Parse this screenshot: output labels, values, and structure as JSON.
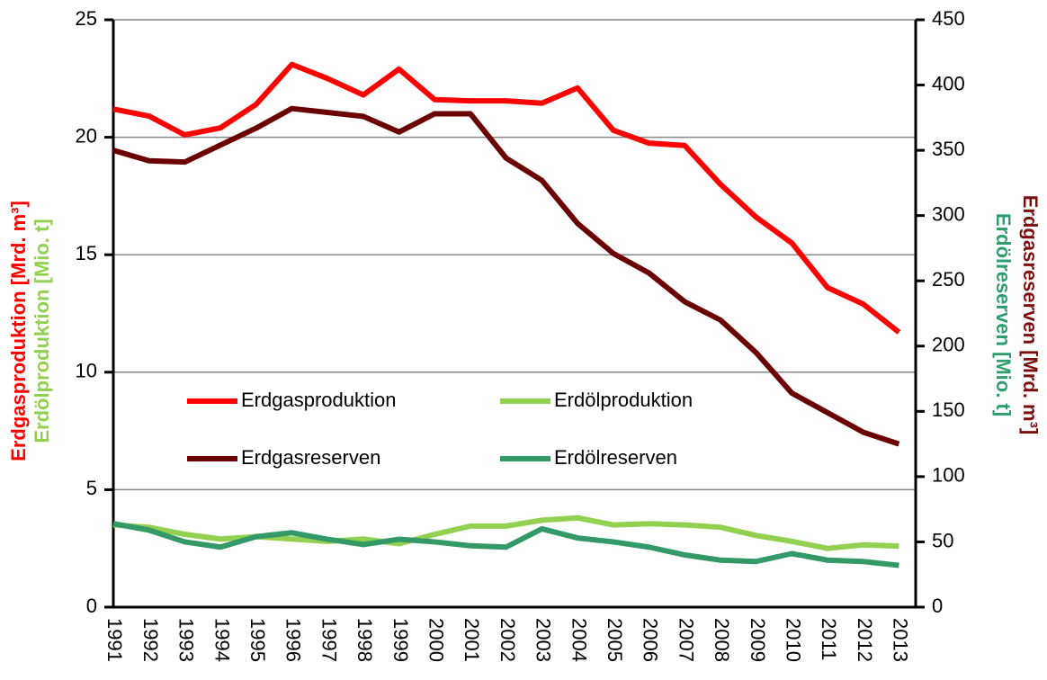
{
  "chart_data": {
    "type": "line",
    "categories": [
      "1991",
      "1992",
      "1993",
      "1994",
      "1995",
      "1996",
      "1997",
      "1998",
      "1999",
      "2000",
      "2001",
      "2002",
      "2003",
      "2004",
      "2005",
      "2006",
      "2007",
      "2008",
      "2009",
      "2010",
      "2011",
      "2012",
      "2013"
    ],
    "series": [
      {
        "name": "Erdgasproduktion",
        "color": "#ff0000",
        "axis": "y",
        "values": [
          21.2,
          20.9,
          20.1,
          20.4,
          21.4,
          23.1,
          22.5,
          21.8,
          22.9,
          21.6,
          21.55,
          21.55,
          21.45,
          22.1,
          20.3,
          19.75,
          19.65,
          18.0,
          16.6,
          15.5,
          13.6,
          12.9,
          11.7
        ]
      },
      {
        "name": "Erdölproduktion",
        "color": "#92d050",
        "axis": "y",
        "values": [
          3.5,
          3.4,
          3.1,
          2.9,
          3.0,
          2.9,
          2.8,
          2.9,
          2.7,
          3.1,
          3.45,
          3.45,
          3.7,
          3.8,
          3.5,
          3.55,
          3.5,
          3.4,
          3.05,
          2.8,
          2.5,
          2.65,
          2.6
        ]
      },
      {
        "name": "Erdgasreserven",
        "color": "#6b0000",
        "axis": "y2",
        "values": [
          350,
          342,
          341,
          354,
          367,
          382,
          379,
          376,
          364,
          378,
          378,
          344,
          327,
          294,
          271,
          256,
          234,
          220,
          195,
          164,
          149,
          134,
          125
        ]
      },
      {
        "name": "Erdölreserven",
        "color": "#339966",
        "axis": "y2",
        "values": [
          64,
          59,
          50,
          46,
          54,
          57,
          52,
          48,
          52,
          50,
          47,
          46,
          60,
          53,
          50,
          46,
          40,
          36,
          35,
          41,
          36,
          35,
          32
        ]
      }
    ],
    "ylabels": [
      {
        "text": "Erdgasproduktion [Mrd. m³]",
        "color": "#ff0000"
      },
      {
        "text": "Erdölproduktion [Mio. t]",
        "color": "#92d050"
      }
    ],
    "y2labels": [
      {
        "text": "Erdgasreserven [Mrd. m³]",
        "color": "#7b1010"
      },
      {
        "text": "Erdölreserven [Mio. t]",
        "color": "#2e9e6e"
      }
    ],
    "ylim": [
      0,
      25
    ],
    "yticks": [
      0,
      5,
      10,
      15,
      20,
      25
    ],
    "y2lim": [
      0,
      450
    ],
    "y2ticks": [
      0,
      50,
      100,
      150,
      200,
      250,
      300,
      350,
      400,
      450
    ],
    "grid": true
  }
}
